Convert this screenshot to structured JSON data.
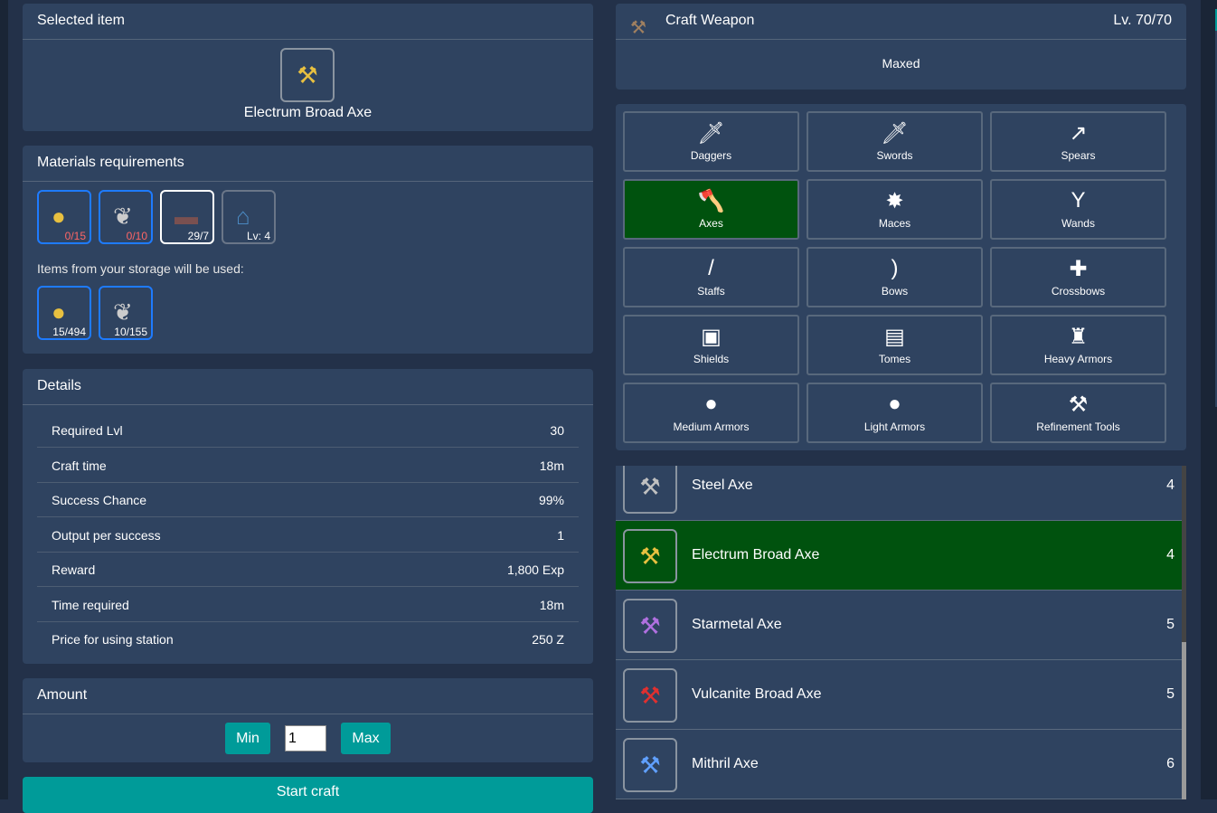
{
  "selected": {
    "title": "Selected item",
    "name": "Electrum Broad Axe",
    "icon": "golden-axe-icon"
  },
  "materials": {
    "title": "Materials requirements",
    "items": [
      {
        "icon": "gold-ore-icon",
        "qty": "0/15"
      },
      {
        "icon": "feather-bundle-icon",
        "qty": "0/10"
      },
      {
        "icon": "leather-strap-icon",
        "qty": "29/7"
      },
      {
        "icon": "crafting-station-icon",
        "qty": "Lv: 4"
      }
    ],
    "storage_note": "Items from your storage will be used:",
    "storage": [
      {
        "icon": "gold-ore-icon",
        "qty": "15/494"
      },
      {
        "icon": "feather-bundle-icon",
        "qty": "10/155"
      }
    ]
  },
  "details": {
    "title": "Details",
    "rows": [
      {
        "k": "Required Lvl",
        "v": "30"
      },
      {
        "k": "Craft time",
        "v": "18m"
      },
      {
        "k": "Success Chance",
        "v": "99%"
      },
      {
        "k": "Output per success",
        "v": "1"
      },
      {
        "k": "Reward",
        "v": "1,800 Exp"
      },
      {
        "k": "Time required",
        "v": "18m"
      },
      {
        "k": "Price for using station",
        "v": "250 Z"
      }
    ]
  },
  "amount": {
    "title": "Amount",
    "min": "Min",
    "value": "1",
    "max": "Max"
  },
  "start": "Start craft",
  "craft": {
    "title": "Craft Weapon",
    "level": "Lv. 70/70",
    "status": "Maxed"
  },
  "categories": [
    "Daggers",
    "Swords",
    "Spears",
    "Axes",
    "Maces",
    "Wands",
    "Staffs",
    "Bows",
    "Crossbows",
    "Shields",
    "Tomes",
    "Heavy Armors",
    "Medium Armors",
    "Light Armors",
    "Refinement Tools"
  ],
  "selected_category": "Axes",
  "list": [
    {
      "name": "Steel Axe",
      "lvl": "4"
    },
    {
      "name": "Electrum Broad Axe",
      "lvl": "4"
    },
    {
      "name": "Starmetal Axe",
      "lvl": "5"
    },
    {
      "name": "Vulcanite Broad Axe",
      "lvl": "5"
    },
    {
      "name": "Mithril Axe",
      "lvl": "6"
    }
  ],
  "colors": {
    "accent": "#009b99",
    "selected": "#00520e",
    "panel": "#2f4360",
    "required_border": "#1e7bff",
    "missing": "#ff6666"
  }
}
